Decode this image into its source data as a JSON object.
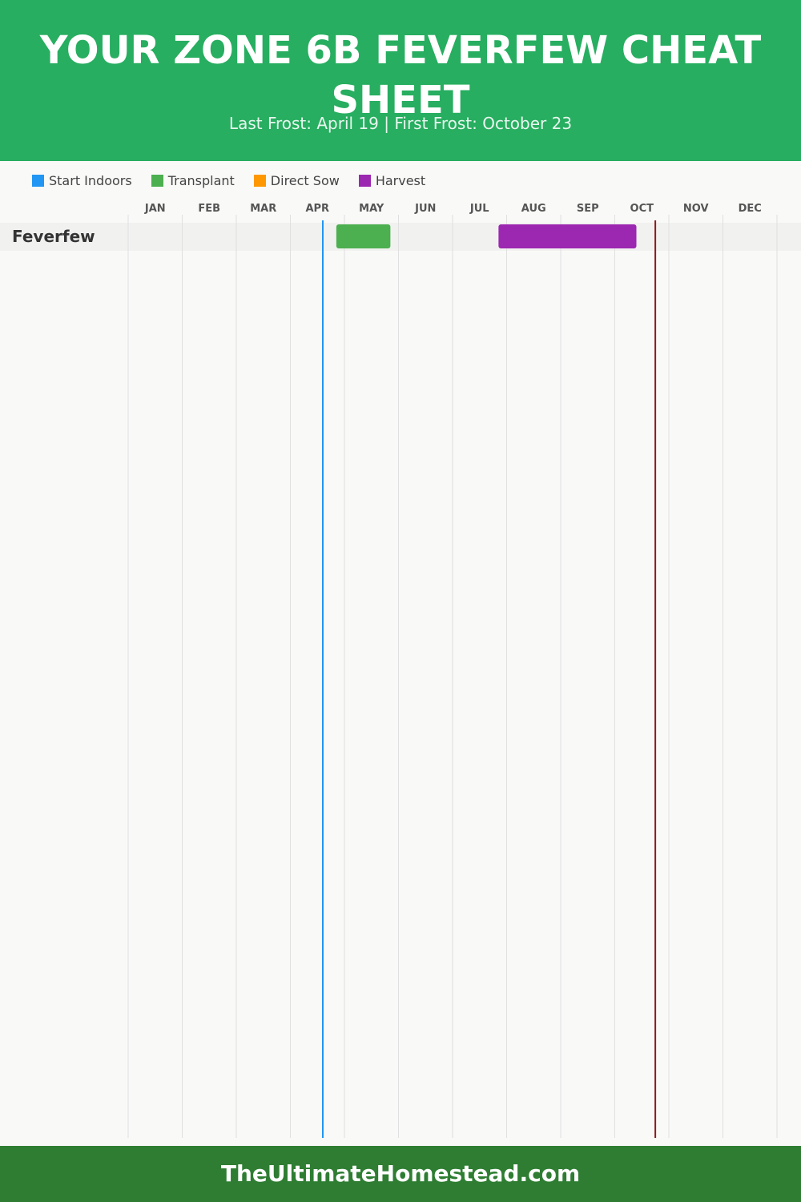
{
  "header": {
    "title": "YOUR ZONE 6B FEVERFEW CHEAT SHEET",
    "subtitle": "Last Frost: April 19 | First Frost: October 23"
  },
  "legend": [
    {
      "label": "Start Indoors",
      "color": "#2196f3"
    },
    {
      "label": "Transplant",
      "color": "#4caf50"
    },
    {
      "label": "Direct Sow",
      "color": "#ff9800"
    },
    {
      "label": "Harvest",
      "color": "#9c27b0"
    }
  ],
  "chart_data": {
    "type": "gantt",
    "title": "YOUR ZONE 6B FEVERFEW CHEAT SHEET",
    "subtitle": "Last Frost: April 19 | First Frost: October 23",
    "months": [
      "JAN",
      "FEB",
      "MAR",
      "APR",
      "MAY",
      "JUN",
      "JUL",
      "AUG",
      "SEP",
      "OCT",
      "NOV",
      "DEC"
    ],
    "rows": [
      {
        "name": "Feverfew",
        "tasks": [
          {
            "type": "Transplant",
            "start": "May 1",
            "end": "May 31",
            "start_month": 4.85,
            "end_month": 5.85
          },
          {
            "type": "Harvest",
            "start": "Jul 30",
            "end": "Oct 15",
            "start_month": 7.85,
            "end_month": 10.4
          }
        ]
      }
    ],
    "markers": [
      {
        "label": "Last Frost",
        "date": "April 19",
        "month_value": 4.6,
        "color": "#2196f3"
      },
      {
        "label": "First Frost",
        "date": "October 23",
        "month_value": 10.75,
        "color": "#8b1a1a"
      }
    ],
    "grid": true,
    "legend_position": "top-left"
  },
  "footer": {
    "text": "TheUltimateHomestead.com"
  }
}
